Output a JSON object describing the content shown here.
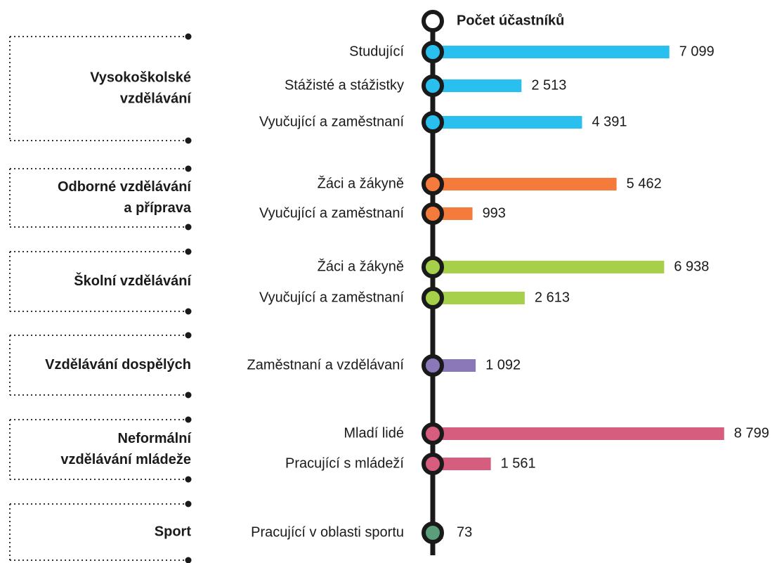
{
  "chart_data": {
    "type": "bar",
    "orientation": "horizontal",
    "legend_title": "Počet účastníků",
    "xlim": [
      0,
      9000
    ],
    "groups": [
      {
        "label_lines": [
          "Vysokoškolské",
          "vzdělávání"
        ],
        "color": "#29c0ef",
        "categories": [
          "Studující",
          "Stážisté a stážistky",
          "Vyučující a zaměstnaní"
        ],
        "values": [
          7099,
          2513,
          4391
        ],
        "value_labels": [
          "7 099",
          "2 513",
          "4 391"
        ]
      },
      {
        "label_lines": [
          "Odborné vzdělávání",
          "a příprava"
        ],
        "color": "#f47b3b",
        "categories": [
          "Žáci a žákyně",
          "Vyučující a zaměstnaní"
        ],
        "values": [
          5462,
          993
        ],
        "value_labels": [
          "5 462",
          "993"
        ]
      },
      {
        "label_lines": [
          "Školní vzdělávání"
        ],
        "color": "#a6cf4a",
        "categories": [
          "Žáci a žákyně",
          "Vyučující a zaměstnaní"
        ],
        "values": [
          6938,
          2613
        ],
        "value_labels": [
          "6 938",
          "2 613"
        ]
      },
      {
        "label_lines": [
          "Vzdělávání dospělých"
        ],
        "color": "#8b78b8",
        "categories": [
          "Zaměstnaní a vzdělávaní"
        ],
        "values": [
          1092
        ],
        "value_labels": [
          "1 092"
        ]
      },
      {
        "label_lines": [
          "Neformální",
          "vzdělávání mládeže"
        ],
        "color": "#d65d7e",
        "categories": [
          "Mladí lidé",
          "Pracující s mládeží"
        ],
        "values": [
          8799,
          1561
        ],
        "value_labels": [
          "8 799",
          "1 561"
        ]
      },
      {
        "label_lines": [
          "Sport"
        ],
        "color": "#5a9e7a",
        "categories": [
          "Pracující v oblasti sportu"
        ],
        "values": [
          73
        ],
        "value_labels": [
          "73"
        ]
      }
    ]
  }
}
